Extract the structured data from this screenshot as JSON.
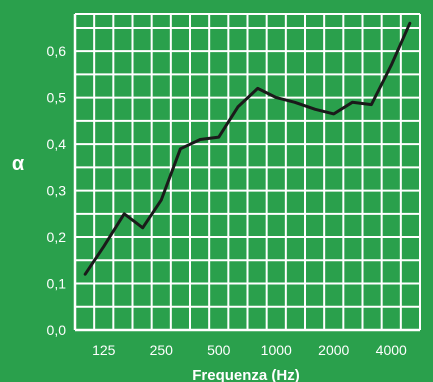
{
  "chart_data": {
    "type": "line",
    "xlabel": "Frequenza (Hz)",
    "ylabel": "α",
    "x_tick_labels": [
      "125",
      "250",
      "500",
      "1000",
      "2000",
      "4000"
    ],
    "y_ticks": [
      0.0,
      0.1,
      0.2,
      0.3,
      0.4,
      0.5,
      0.6
    ],
    "y_tick_labels": [
      "0,0",
      "0,1",
      "0,2",
      "0,3",
      "0,4",
      "0,5",
      "0,6"
    ],
    "ylim": [
      0,
      0.68
    ],
    "x_scale": "log-octave",
    "xlim_octaves": [
      -0.5,
      5.5
    ],
    "grid": true,
    "series": [
      {
        "x": [
          100,
          125,
          160,
          200,
          250,
          315,
          400,
          500,
          630,
          800,
          1000,
          1250,
          1600,
          2000,
          2500,
          3150,
          4000,
          5000
        ],
        "values": [
          0.12,
          0.18,
          0.25,
          0.22,
          0.28,
          0.39,
          0.41,
          0.415,
          0.48,
          0.52,
          0.5,
          0.49,
          0.475,
          0.465,
          0.49,
          0.485,
          0.57,
          0.66
        ]
      }
    ]
  },
  "colors": {
    "background": "#2aa04c",
    "grid": "#ffffff",
    "line": "#1a1a1a",
    "text": "#ffffff"
  }
}
